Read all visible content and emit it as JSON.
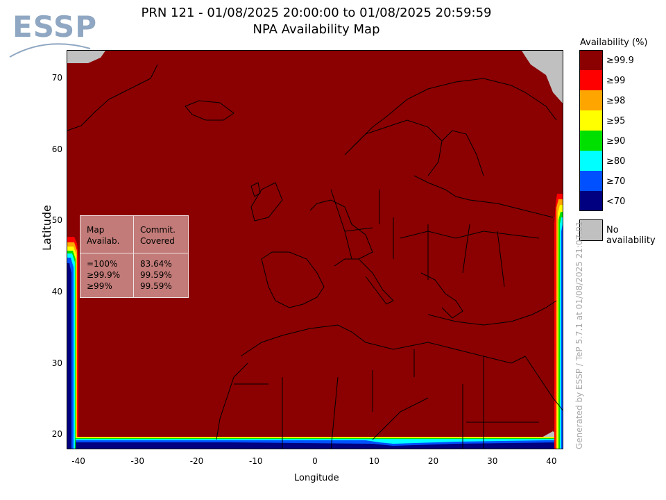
{
  "logo": {
    "text": "ESSP"
  },
  "title": {
    "line1": "PRN 121 - 01/08/2025 20:00:00 to 01/08/2025 20:59:59",
    "line2": "NPA Availability Map"
  },
  "chart_data": {
    "type": "heatmap",
    "xlabel": "Longitude",
    "ylabel": "Latitude",
    "xlim": [
      -42,
      42
    ],
    "ylim": [
      18,
      74
    ],
    "xticks": [
      -40,
      -30,
      -20,
      -10,
      0,
      10,
      20,
      30,
      40
    ],
    "yticks": [
      20,
      30,
      40,
      50,
      60,
      70
    ],
    "grid": false,
    "legend_position": "right",
    "colorscale": [
      {
        "label": "≥99.9",
        "color": "#8b0000"
      },
      {
        "label": "≥99",
        "color": "#ff0000"
      },
      {
        "label": "≥98",
        "color": "#ffa500"
      },
      {
        "label": "≥95",
        "color": "#ffff00"
      },
      {
        "label": "≥90",
        "color": "#00e000"
      },
      {
        "label": "≥80",
        "color": "#00ffff"
      },
      {
        "label": "≥70",
        "color": "#0050ff"
      },
      {
        "label": "<70",
        "color": "#000080"
      }
    ],
    "no_availability": {
      "label": "No availability",
      "color": "#c0c0c0"
    },
    "coverage_table": {
      "headers": [
        "Map\nAvailab.",
        "Commit.\nCovered"
      ],
      "rows": [
        {
          "level": "=100%",
          "covered": "83.64%"
        },
        {
          "level": "≥99.9%",
          "covered": "99.59%"
        },
        {
          "level": "≥99%",
          "covered": "99.59%"
        }
      ]
    }
  },
  "legend": {
    "title": "Availability (%)"
  },
  "credit": "Generated by ESSP / TeP 5.7.1 at 01/08/2025 21:07:01"
}
